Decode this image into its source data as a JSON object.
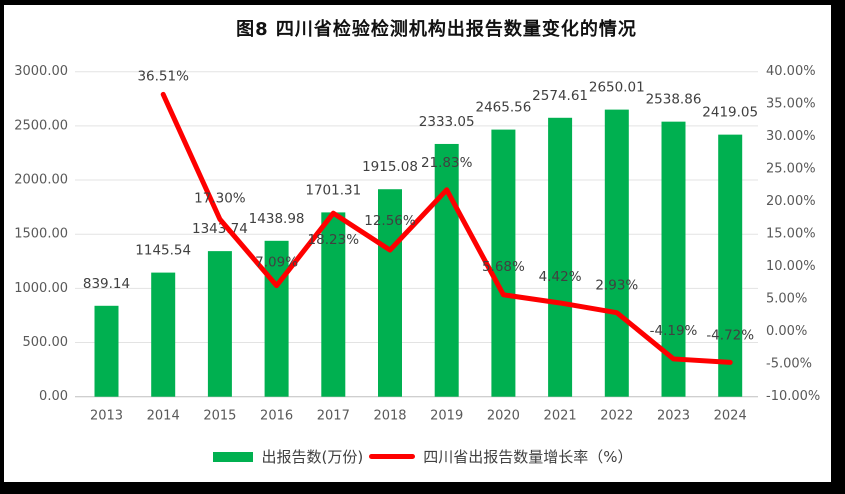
{
  "title": "图8  四川省检验检测机构出报告数量变化的情况",
  "chart_data": {
    "type": "bar+line combo",
    "title": "图8  四川省检验检测机构出报告数量变化的情况",
    "categories": [
      "2013",
      "2014",
      "2015",
      "2016",
      "2017",
      "2018",
      "2019",
      "2020",
      "2021",
      "2022",
      "2023",
      "2024"
    ],
    "series": [
      {
        "name": "出报告数(万份)",
        "type": "bar",
        "axis": "left",
        "values": [
          839.14,
          1145.54,
          1343.74,
          1438.98,
          1701.31,
          1915.08,
          2333.05,
          2465.56,
          2574.61,
          2650.01,
          2538.86,
          2419.05
        ],
        "labels": [
          "839.14",
          "1145.54",
          "1343.74",
          "1438.98",
          "1701.31",
          "1915.08",
          "2333.05",
          "2465.56",
          "2574.61",
          "2650.01",
          "2538.86",
          "2419.05"
        ]
      },
      {
        "name": "四川省出报告数量增长率（%）",
        "type": "line",
        "axis": "right",
        "values": [
          null,
          36.51,
          17.3,
          7.09,
          18.23,
          12.56,
          21.83,
          5.68,
          4.42,
          2.93,
          -4.19,
          -4.72
        ],
        "labels": [
          "",
          "36.51%",
          "17.30%",
          "7.09%",
          "18.23%",
          "12.56%",
          "21.83%",
          "5.68%",
          "4.42%",
          "2.93%",
          "-4.19%",
          "-4.72%"
        ]
      }
    ],
    "left_axis": {
      "min": 0,
      "max": 3000,
      "ticks": [
        "3000.00",
        "2500.00",
        "2000.00",
        "1500.00",
        "1000.00",
        "500.00",
        "0.00"
      ]
    },
    "right_axis": {
      "min": -10,
      "max": 40,
      "ticks": [
        "40.00%",
        "35.00%",
        "30.00%",
        "25.00%",
        "20.00%",
        "15.00%",
        "10.00%",
        "5.00%",
        "0.00%",
        "-5.00%",
        "-10.00%"
      ]
    },
    "grid": true,
    "legend_position": "bottom"
  },
  "legend": {
    "bar_label": "出报告数(万份)",
    "line_label": "四川省出报告数量增长率（%）"
  },
  "colors": {
    "bar": "#00B050",
    "line": "#FE0000",
    "grid": "#E3E3E3",
    "axis_line": "#BFBFBF",
    "tick_text": "#595959",
    "label_text": "#404040",
    "frame": "#000000"
  }
}
